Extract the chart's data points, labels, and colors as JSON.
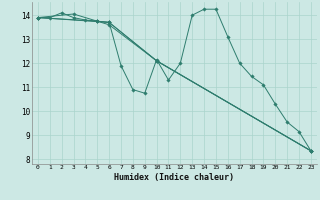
{
  "xlabel": "Humidex (Indice chaleur)",
  "bg_color": "#cce8e4",
  "line_color": "#2e7d6e",
  "grid_color": "#aad4cc",
  "xlim": [
    -0.5,
    23.5
  ],
  "ylim": [
    7.8,
    14.55
  ],
  "xticks": [
    0,
    1,
    2,
    3,
    4,
    5,
    6,
    7,
    8,
    9,
    10,
    11,
    12,
    13,
    14,
    15,
    16,
    17,
    18,
    19,
    20,
    21,
    22,
    23
  ],
  "yticks": [
    8,
    9,
    10,
    11,
    12,
    13,
    14
  ],
  "series": [
    {
      "x": [
        0,
        1,
        2,
        3,
        4,
        5,
        6,
        7,
        8,
        9,
        10,
        11,
        12,
        13,
        14,
        15,
        16,
        17,
        18,
        19,
        20,
        21,
        22,
        23
      ],
      "y": [
        13.9,
        13.9,
        14.1,
        13.9,
        13.8,
        13.75,
        13.7,
        11.9,
        10.9,
        10.75,
        12.15,
        11.3,
        12.0,
        14.0,
        14.25,
        14.25,
        13.1,
        12.0,
        11.45,
        11.1,
        10.3,
        9.55,
        9.15,
        8.35
      ]
    },
    {
      "x": [
        0,
        6,
        10,
        23
      ],
      "y": [
        13.9,
        13.7,
        12.1,
        8.35
      ]
    },
    {
      "x": [
        0,
        5,
        6,
        10,
        23
      ],
      "y": [
        13.9,
        13.75,
        13.6,
        12.1,
        8.35
      ]
    },
    {
      "x": [
        0,
        3,
        5,
        6,
        10,
        23
      ],
      "y": [
        13.9,
        14.05,
        13.75,
        13.7,
        12.1,
        8.35
      ]
    }
  ]
}
